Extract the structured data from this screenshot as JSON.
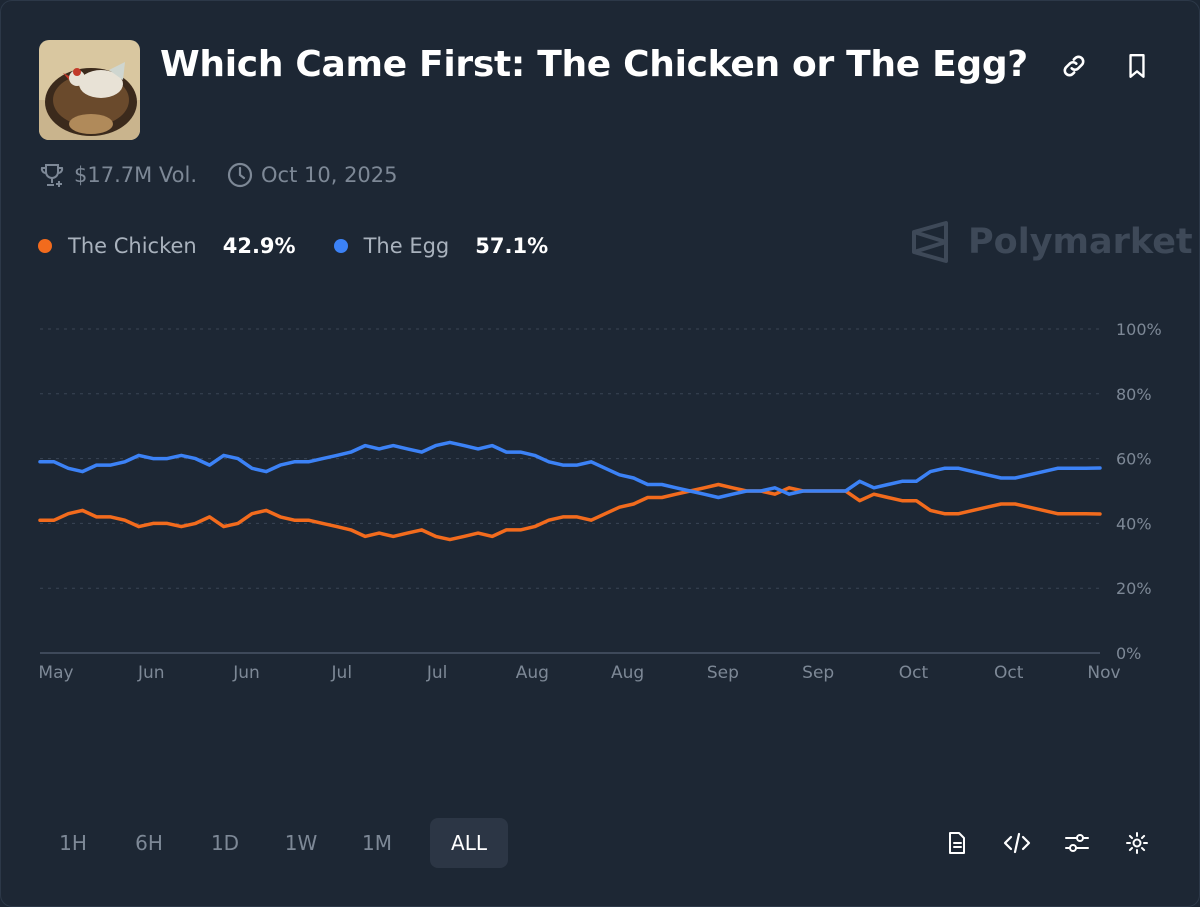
{
  "market": {
    "title": "Which Came First: The Chicken or The Egg?",
    "volume": "$17.7M Vol.",
    "date": "Oct 10, 2025",
    "brand": "Polymarket"
  },
  "legend": [
    {
      "name": "The Chicken",
      "value": "42.9%",
      "color": "#f26b1d"
    },
    {
      "name": "The Egg",
      "value": "57.1%",
      "color": "#3c82f6"
    }
  ],
  "ranges": {
    "tabs": [
      "1H",
      "6H",
      "1D",
      "1W",
      "1M",
      "ALL"
    ],
    "active": "ALL"
  },
  "icons": {
    "header": [
      "link-icon",
      "bookmark-icon"
    ],
    "meta": [
      "trophy-icon",
      "clock-icon"
    ],
    "tools": [
      "document-icon",
      "code-icon",
      "sliders-icon",
      "gear-icon"
    ]
  },
  "chart_data": {
    "type": "line",
    "x_tick_labels": [
      "May",
      "Jun",
      "Jun",
      "Jul",
      "Jul",
      "Aug",
      "Aug",
      "Sep",
      "Sep",
      "Oct",
      "Oct",
      "Nov"
    ],
    "y_tick_labels": [
      "100%",
      "80%",
      "60%",
      "40%",
      "20%",
      "0%"
    ],
    "ylim": [
      0,
      100
    ],
    "grid": true,
    "x": [
      0,
      4,
      8,
      12,
      16,
      20,
      24,
      28,
      32,
      36,
      40,
      44,
      48,
      52,
      56,
      60,
      64,
      68,
      72,
      76,
      80,
      84,
      88,
      92,
      96,
      100,
      104,
      108,
      112,
      116,
      120,
      124,
      128,
      132,
      136,
      140,
      144,
      148,
      152,
      156,
      160,
      164,
      168,
      172,
      176,
      180,
      184,
      188,
      192,
      196,
      200,
      204,
      208,
      212,
      216,
      220,
      224,
      228,
      232,
      236,
      240,
      244,
      248,
      252,
      256,
      260,
      264,
      268,
      272,
      276,
      280,
      284,
      288,
      292,
      296,
      300
    ],
    "series": [
      {
        "name": "The Chicken",
        "color": "#f26b1d",
        "values": [
          41,
          41,
          43,
          44,
          42,
          42,
          41,
          39,
          40,
          40,
          39,
          40,
          42,
          39,
          40,
          43,
          44,
          42,
          41,
          41,
          40,
          39,
          38,
          36,
          37,
          36,
          37,
          38,
          36,
          35,
          36,
          37,
          36,
          38,
          38,
          39,
          41,
          42,
          42,
          41,
          43,
          45,
          46,
          48,
          48,
          49,
          50,
          51,
          52,
          51,
          50,
          50,
          49,
          51,
          50,
          50,
          50,
          50,
          47,
          49,
          48,
          47,
          47,
          44,
          43,
          43,
          44,
          45,
          46,
          46,
          45,
          44,
          43,
          43,
          43,
          42.9
        ]
      },
      {
        "name": "The Egg",
        "color": "#3c82f6",
        "values": [
          59,
          59,
          57,
          56,
          58,
          58,
          59,
          61,
          60,
          60,
          61,
          60,
          58,
          61,
          60,
          57,
          56,
          58,
          59,
          59,
          60,
          61,
          62,
          64,
          63,
          64,
          63,
          62,
          64,
          65,
          64,
          63,
          64,
          62,
          62,
          61,
          59,
          58,
          58,
          59,
          57,
          55,
          54,
          52,
          52,
          51,
          50,
          49,
          48,
          49,
          50,
          50,
          51,
          49,
          50,
          50,
          50,
          50,
          53,
          51,
          52,
          53,
          53,
          56,
          57,
          57,
          56,
          55,
          54,
          54,
          55,
          56,
          57,
          57,
          57,
          57.1
        ]
      }
    ]
  }
}
